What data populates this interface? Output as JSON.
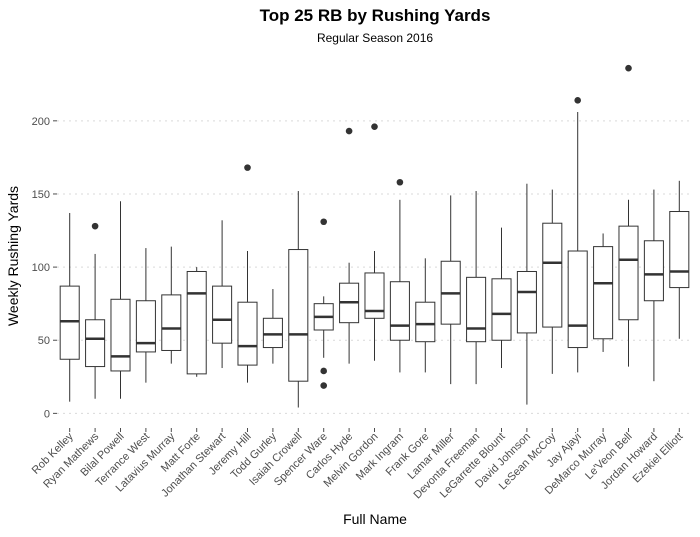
{
  "colors": {
    "box_stroke": "#333333",
    "grid": "#d9d9d9",
    "outlier": "#333333",
    "axis_text": "#4d4d4d"
  },
  "chart_data": {
    "type": "boxplot",
    "title": "Top 25 RB by Rushing Yards",
    "subtitle": "Regular Season 2016",
    "xlabel": "Full Name",
    "ylabel": "Weekly Rushing Yards",
    "ylim": [
      -10,
      245
    ],
    "yticks": [
      0,
      50,
      100,
      150,
      200
    ],
    "grid": true,
    "categories": [
      "Rob Kelley",
      "Ryan Mathews",
      "Bilal Powell",
      "Terrance West",
      "Latavius Murray",
      "Matt Forte",
      "Jonathan Stewart",
      "Jeremy Hill",
      "Todd Gurley",
      "Isaiah Crowell",
      "Spencer Ware",
      "Carlos Hyde",
      "Melvin Gordon",
      "Mark Ingram",
      "Frank Gore",
      "Lamar Miller",
      "Devonta Freeman",
      "LeGarrette Blount",
      "David Johnson",
      "LeSean McCoy",
      "Jay Ajayi",
      "DeMarco Murray",
      "Le'Veon Bell",
      "Jordan Howard",
      "Ezekiel Elliott"
    ],
    "boxes": [
      {
        "low": 8,
        "q1": 37,
        "median": 63,
        "q3": 87,
        "high": 137,
        "outliers": []
      },
      {
        "low": 10,
        "q1": 32,
        "median": 51,
        "q3": 64,
        "high": 109,
        "outliers": [
          128
        ]
      },
      {
        "low": 10,
        "q1": 29,
        "median": 39,
        "q3": 78,
        "high": 145,
        "outliers": []
      },
      {
        "low": 21,
        "q1": 42,
        "median": 48,
        "q3": 77,
        "high": 113,
        "outliers": []
      },
      {
        "low": 34,
        "q1": 43,
        "median": 58,
        "q3": 81,
        "high": 114,
        "outliers": []
      },
      {
        "low": 25,
        "q1": 27,
        "median": 82,
        "q3": 97,
        "high": 100,
        "outliers": []
      },
      {
        "low": 31,
        "q1": 48,
        "median": 64,
        "q3": 87,
        "high": 132,
        "outliers": []
      },
      {
        "low": 21,
        "q1": 33,
        "median": 46,
        "q3": 76,
        "high": 111,
        "outliers": [
          168
        ]
      },
      {
        "low": 34,
        "q1": 45,
        "median": 54,
        "q3": 65,
        "high": 85,
        "outliers": []
      },
      {
        "low": 4,
        "q1": 22,
        "median": 54,
        "q3": 112,
        "high": 152,
        "outliers": []
      },
      {
        "low": 38,
        "q1": 57,
        "median": 66,
        "q3": 75,
        "high": 80,
        "outliers": [
          131,
          29,
          19
        ]
      },
      {
        "low": 34,
        "q1": 62,
        "median": 76,
        "q3": 89,
        "high": 103,
        "outliers": [
          193
        ]
      },
      {
        "low": 36,
        "q1": 65,
        "median": 70,
        "q3": 96,
        "high": 111,
        "outliers": [
          196
        ]
      },
      {
        "low": 28,
        "q1": 50,
        "median": 60,
        "q3": 90,
        "high": 146,
        "outliers": [
          158
        ]
      },
      {
        "low": 28,
        "q1": 49,
        "median": 61,
        "q3": 76,
        "high": 106,
        "outliers": []
      },
      {
        "low": 20,
        "q1": 61,
        "median": 82,
        "q3": 104,
        "high": 149,
        "outliers": []
      },
      {
        "low": 20,
        "q1": 49,
        "median": 58,
        "q3": 93,
        "high": 152,
        "outliers": []
      },
      {
        "low": 31,
        "q1": 50,
        "median": 68,
        "q3": 92,
        "high": 127,
        "outliers": []
      },
      {
        "low": 6,
        "q1": 55,
        "median": 83,
        "q3": 97,
        "high": 157,
        "outliers": []
      },
      {
        "low": 27,
        "q1": 59,
        "median": 103,
        "q3": 130,
        "high": 153,
        "outliers": []
      },
      {
        "low": 28,
        "q1": 45,
        "median": 60,
        "q3": 111,
        "high": 206,
        "outliers": [
          214
        ]
      },
      {
        "low": 42,
        "q1": 51,
        "median": 89,
        "q3": 114,
        "high": 123,
        "outliers": []
      },
      {
        "low": 32,
        "q1": 64,
        "median": 105,
        "q3": 128,
        "high": 146,
        "outliers": [
          236
        ]
      },
      {
        "low": 22,
        "q1": 77,
        "median": 95,
        "q3": 118,
        "high": 153,
        "outliers": []
      },
      {
        "low": 51,
        "q1": 86,
        "median": 97,
        "q3": 138,
        "high": 159,
        "outliers": []
      }
    ]
  }
}
